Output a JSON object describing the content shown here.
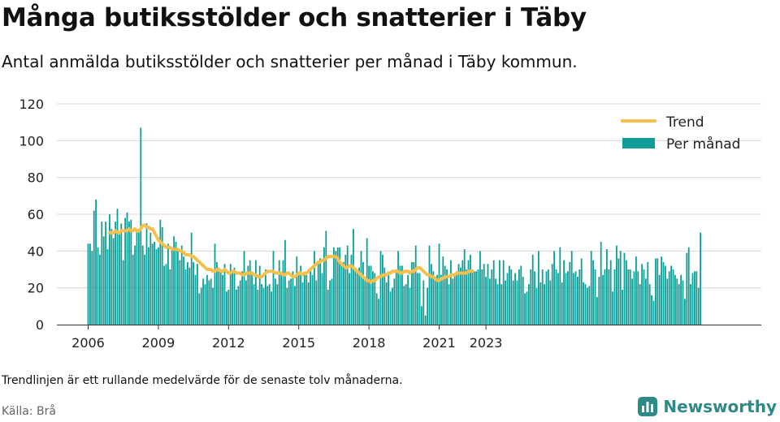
{
  "title": "Många butiksstölder och snatterier i Täby",
  "subtitle": "Antal anmälda butiksstölder och snatterier per månad i Täby kommun.",
  "footnote": "Trendlinjen är ett rullande medelvärde för de senaste tolv månaderna.",
  "source": "Källa: Brå",
  "brand": {
    "name": "Newsworthy",
    "logo_icon": "bar-chart-logo-icon"
  },
  "colors": {
    "bars": "#0f9e97",
    "trend": "#f5c04b",
    "grid": "#d9d9d9",
    "brand": "#2d8a86"
  },
  "chart_data": {
    "type": "bar",
    "title": "Många butiksstölder och snatterier i Täby",
    "xlabel": "",
    "ylabel": "",
    "x_start": "2006-01",
    "ylim": [
      0,
      120
    ],
    "yticks": [
      0,
      20,
      40,
      60,
      80,
      100,
      120
    ],
    "xticks": [
      {
        "label": "2006",
        "month": "2006-01"
      },
      {
        "label": "2009",
        "month": "2009-01"
      },
      {
        "label": "2012",
        "month": "2012-01"
      },
      {
        "label": "2015",
        "month": "2015-01"
      },
      {
        "label": "2018",
        "month": "2018-01"
      },
      {
        "label": "2021",
        "month": "2021-01"
      },
      {
        "label": "2023",
        "month": "2023-01"
      }
    ],
    "legend": {
      "position": "top-right"
    },
    "grid": true,
    "series": [
      {
        "name": "Per månad",
        "type": "bar",
        "start": "2006-01",
        "values": [
          44,
          44,
          40,
          62,
          68,
          42,
          38,
          56,
          48,
          56,
          41,
          60,
          52,
          47,
          56,
          63,
          49,
          55,
          35,
          58,
          61,
          56,
          57,
          38,
          43,
          52,
          50,
          107,
          43,
          38,
          55,
          42,
          50,
          44,
          45,
          41,
          42,
          57,
          53,
          32,
          33,
          44,
          30,
          41,
          48,
          45,
          40,
          35,
          43,
          37,
          30,
          34,
          31,
          50,
          34,
          27,
          33,
          17,
          20,
          25,
          22,
          27,
          24,
          25,
          20,
          44,
          34,
          31,
          30,
          27,
          33,
          18,
          19,
          33,
          29,
          31,
          19,
          21,
          24,
          29,
          40,
          24,
          32,
          35,
          29,
          22,
          35,
          19,
          32,
          22,
          20,
          30,
          21,
          22,
          18,
          40,
          25,
          22,
          35,
          28,
          35,
          46,
          20,
          24,
          25,
          29,
          21,
          37,
          28,
          32,
          23,
          28,
          27,
          23,
          30,
          27,
          40,
          24,
          34,
          36,
          28,
          42,
          51,
          19,
          24,
          25,
          42,
          40,
          42,
          42,
          33,
          34,
          38,
          43,
          28,
          38,
          52,
          29,
          30,
          31,
          40,
          34,
          24,
          47,
          32,
          32,
          29,
          28,
          17,
          14,
          40,
          38,
          31,
          23,
          29,
          18,
          20,
          25,
          30,
          40,
          32,
          32,
          21,
          22,
          27,
          20,
          34,
          34,
          43,
          28,
          28,
          10,
          24,
          5,
          20,
          43,
          33,
          29,
          26,
          27,
          44,
          27,
          37,
          32,
          30,
          22,
          35,
          25,
          27,
          29,
          33,
          31,
          35,
          41,
          30,
          35,
          38,
          30,
          29,
          29,
          30,
          40,
          30,
          33,
          26,
          33,
          25,
          30,
          35,
          25,
          22,
          35,
          22,
          35,
          24,
          28,
          32,
          30,
          24,
          28,
          24,
          30,
          32,
          26,
          17,
          18,
          22,
          30,
          38,
          29,
          20,
          40,
          23,
          30,
          22,
          29,
          30,
          24,
          33,
          40,
          30,
          28,
          42,
          23,
          35,
          28,
          29,
          34,
          40,
          28,
          29,
          26,
          30,
          36,
          23,
          22,
          20,
          21,
          40,
          35,
          30,
          15,
          26,
          45,
          27,
          30,
          41,
          30,
          35,
          18,
          30,
          43,
          36,
          40,
          19,
          39,
          35,
          30,
          30,
          25,
          29,
          37,
          29,
          22,
          33,
          30,
          25,
          34,
          22,
          16,
          13,
          36,
          36,
          27,
          37,
          34,
          32,
          25,
          29,
          32,
          30,
          27,
          25,
          22,
          27,
          24,
          14,
          39,
          42,
          22,
          28,
          29,
          29,
          20,
          50
        ]
      },
      {
        "name": "Trend",
        "type": "line",
        "start": "2006-12",
        "values": [
          50,
          50,
          50,
          51,
          50,
          50,
          51,
          51,
          51,
          51,
          52,
          51,
          51,
          52,
          51,
          51,
          52,
          54,
          54,
          53,
          53,
          52,
          52,
          50,
          48,
          46,
          45,
          44,
          43,
          42,
          42,
          42,
          41,
          41,
          41,
          41,
          40,
          40,
          39,
          38,
          38,
          38,
          37,
          37,
          36,
          35,
          34,
          33,
          32,
          31,
          30,
          30,
          30,
          29,
          29,
          30,
          30,
          29,
          29,
          30,
          29,
          28,
          28,
          29,
          29,
          28,
          28,
          28,
          27,
          27,
          28,
          28,
          28,
          28,
          27,
          27,
          26,
          26,
          26,
          27,
          28,
          29,
          29,
          29,
          29,
          28,
          28,
          28,
          28,
          27,
          27,
          28,
          28,
          27,
          26,
          26,
          27,
          28,
          28,
          27,
          28,
          28,
          29,
          30,
          31,
          32,
          33,
          34,
          34,
          35,
          35,
          36,
          37,
          37,
          37,
          37,
          37,
          36,
          34,
          33,
          32,
          31,
          31,
          32,
          32,
          31,
          30,
          29,
          28,
          27,
          26,
          25,
          24,
          24,
          23,
          24,
          24,
          25,
          26,
          26,
          27,
          27,
          27,
          28,
          28,
          29,
          29,
          29,
          29,
          28,
          28,
          29,
          29,
          29,
          28,
          29,
          29,
          30,
          31,
          31,
          30,
          29,
          28,
          27,
          27,
          26,
          26,
          25,
          24,
          24,
          25,
          25,
          26,
          26,
          26,
          27,
          27,
          27,
          28,
          28,
          28,
          28,
          28,
          28,
          29,
          29,
          29
        ]
      }
    ]
  }
}
